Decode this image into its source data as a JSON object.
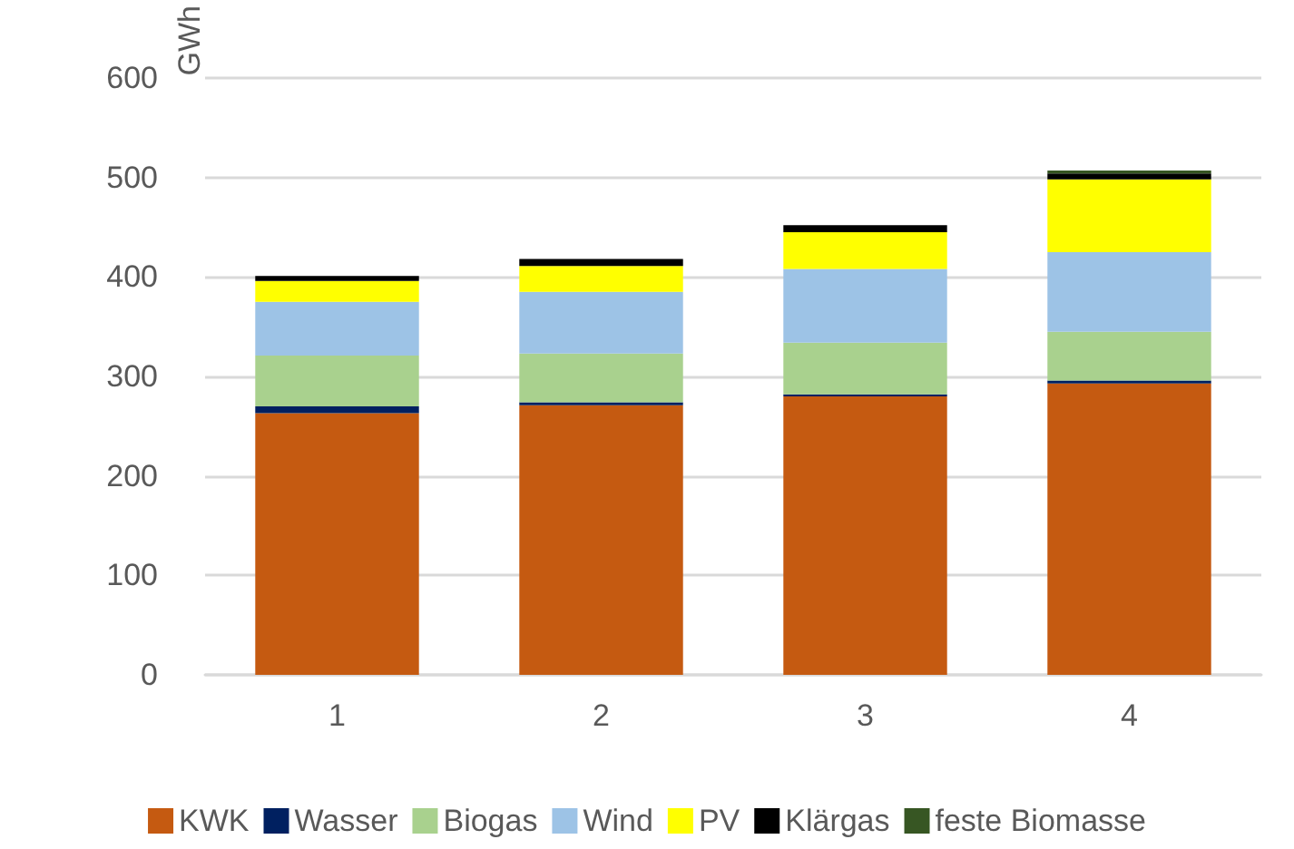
{
  "chart_data": {
    "type": "bar",
    "stacked": true,
    "ylabel": "GWh",
    "categories": [
      "1",
      "2",
      "3",
      "4"
    ],
    "series": [
      {
        "name": "KWK",
        "color": "#c55a11",
        "values": [
          263,
          271,
          280,
          293
        ]
      },
      {
        "name": "Wasser",
        "color": "#002060",
        "values": [
          7,
          3,
          2,
          3
        ]
      },
      {
        "name": "Biogas",
        "color": "#a9d18e",
        "values": [
          51,
          49,
          52,
          49
        ]
      },
      {
        "name": "Wind",
        "color": "#9dc3e6",
        "values": [
          54,
          62,
          74,
          80
        ]
      },
      {
        "name": "PV",
        "color": "#ffff00",
        "values": [
          21,
          26,
          37,
          73
        ]
      },
      {
        "name": "Klärgas",
        "color": "#000000",
        "values": [
          5,
          7,
          7,
          6
        ]
      },
      {
        "name": "feste Biomasse",
        "color": "#375623",
        "values": [
          0,
          0,
          0,
          3
        ]
      }
    ],
    "ylim": [
      0,
      600
    ],
    "yticks": [
      0,
      100,
      200,
      300,
      400,
      500,
      600
    ],
    "grid": "y",
    "legend": "bottom"
  }
}
